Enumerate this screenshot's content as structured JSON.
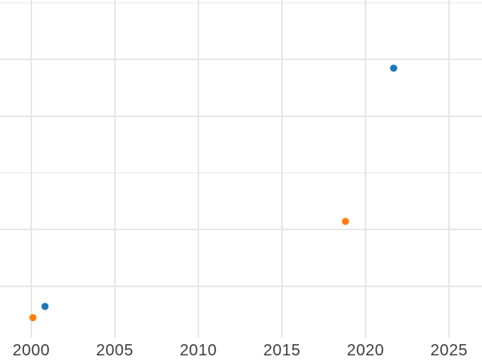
{
  "chart_data": {
    "type": "scatter",
    "title": "",
    "xlabel": "",
    "ylabel": "",
    "grid": true,
    "legend": false,
    "background_color": "#ffffff",
    "gridline_color": "#e6e6e6",
    "tick_label_color": "#3f3f3f",
    "marker_diameter_px": 9,
    "x_axis": {
      "tick_values": [
        2000,
        2005,
        2010,
        2015,
        2020,
        2025
      ],
      "tick_labels": [
        "2000",
        "2005",
        "2010",
        "2015",
        "2020",
        "2025"
      ],
      "visible_range": [
        1998.13,
        2026.97
      ]
    },
    "y_axis": {
      "tick_labels": [],
      "gridline_values": [
        0,
        1,
        2,
        3,
        4,
        5
      ],
      "visible_range": [
        -1.32,
        5.05
      ],
      "note": "y-axis tick labels are outside the visible crop; y values are expressed in gridline units above the lowest visible gridline"
    },
    "series": [
      {
        "name": "blue-series",
        "color": "#1f77b4",
        "points": [
          {
            "x": 2000.8,
            "y": -0.36
          },
          {
            "x": 2021.7,
            "y": 3.84
          }
        ]
      },
      {
        "name": "orange-series",
        "color": "#ff7f0e",
        "points": [
          {
            "x": 2000.1,
            "y": -0.56
          },
          {
            "x": 2018.8,
            "y": 1.14
          }
        ]
      }
    ]
  }
}
